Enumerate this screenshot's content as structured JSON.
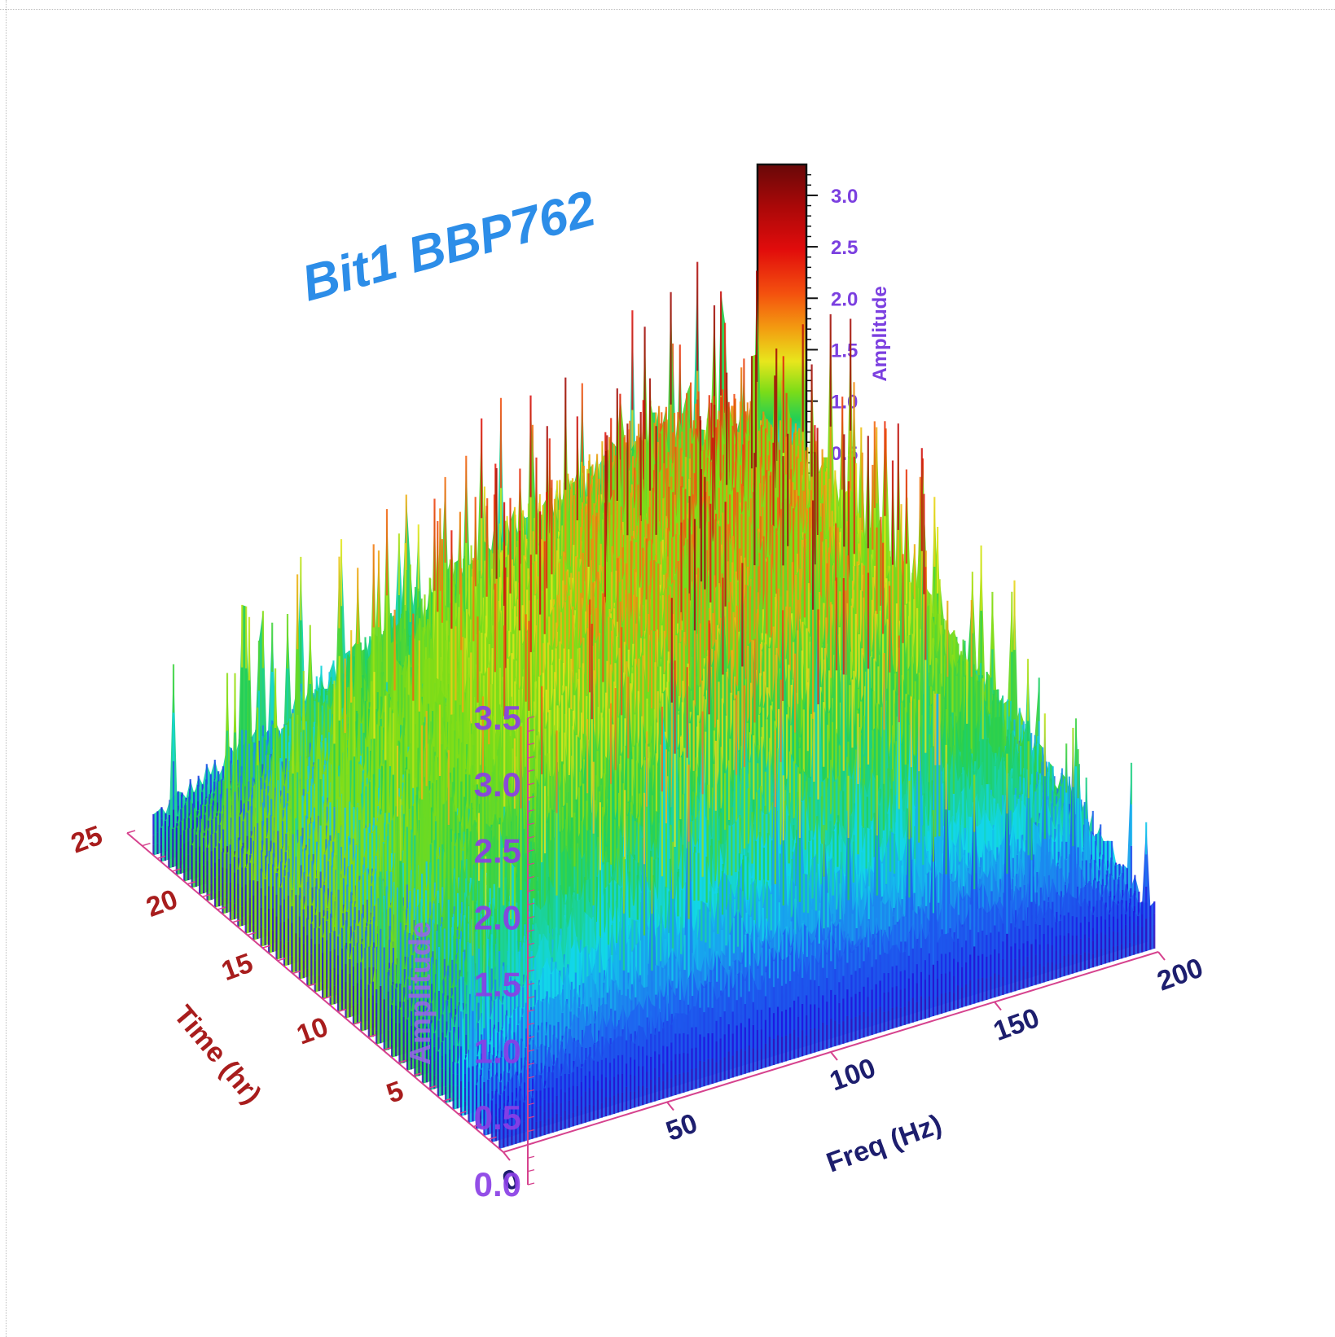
{
  "chart_data": {
    "type": "surface3d",
    "title": "Bit1 BBP762",
    "x_axis": {
      "label": "Freq (Hz)",
      "range": [
        0,
        200
      ],
      "ticks": [
        "0",
        "50",
        "100",
        "150",
        "200"
      ]
    },
    "y_axis": {
      "label": "Time (hr)",
      "range": [
        0,
        25
      ],
      "ticks": [
        "5",
        "10",
        "15",
        "20",
        "25"
      ]
    },
    "z_axis": {
      "label": "Amplitude",
      "range": [
        0.0,
        3.5
      ],
      "ticks": [
        "0.0",
        "0.5",
        "1.0",
        "1.5",
        "2.0",
        "2.5",
        "3.0",
        "3.5"
      ]
    },
    "colorbar": {
      "label": "Amplitude",
      "range": [
        0.0,
        3.3
      ],
      "ticks": [
        "0.5",
        "1.0",
        "1.5",
        "2.0",
        "2.5",
        "3.0"
      ],
      "colormap": "rainbow",
      "colors": [
        "#3a0aa6",
        "#1f10e0",
        "#1e6af0",
        "#12d6ea",
        "#22cf55",
        "#7bdc18",
        "#e8e61c",
        "#f39a10",
        "#f4510e",
        "#e10c0c",
        "#a80808",
        "#680808"
      ]
    },
    "freq_samples": [
      0,
      25,
      50,
      75,
      100,
      125,
      150,
      175,
      200
    ],
    "time_samples": [
      0,
      3,
      6,
      9,
      12,
      15,
      18,
      21,
      23
    ],
    "amplitude_grid": [
      [
        0.3,
        0.5,
        0.6,
        0.7,
        0.7,
        0.6,
        0.6,
        0.5,
        0.3
      ],
      [
        0.4,
        0.9,
        1.2,
        1.3,
        1.3,
        1.2,
        1.1,
        0.9,
        0.5
      ],
      [
        0.5,
        1.1,
        1.5,
        1.7,
        1.9,
        1.8,
        1.6,
        1.3,
        0.7
      ],
      [
        0.5,
        1.2,
        1.6,
        1.9,
        2.1,
        2.1,
        2.0,
        1.6,
        0.8
      ],
      [
        0.5,
        1.2,
        1.6,
        2.0,
        2.3,
        2.3,
        2.2,
        1.8,
        0.9
      ],
      [
        0.6,
        1.1,
        1.5,
        1.9,
        2.2,
        2.4,
        2.4,
        1.9,
        0.9
      ],
      [
        0.5,
        1.0,
        1.4,
        1.7,
        2.0,
        2.3,
        2.5,
        2.1,
        1.0
      ],
      [
        0.4,
        0.8,
        1.2,
        1.5,
        1.8,
        2.1,
        2.3,
        1.9,
        0.9
      ],
      [
        0.3,
        0.6,
        0.9,
        1.2,
        1.4,
        1.6,
        1.8,
        1.5,
        0.7
      ]
    ],
    "grid": false
  }
}
